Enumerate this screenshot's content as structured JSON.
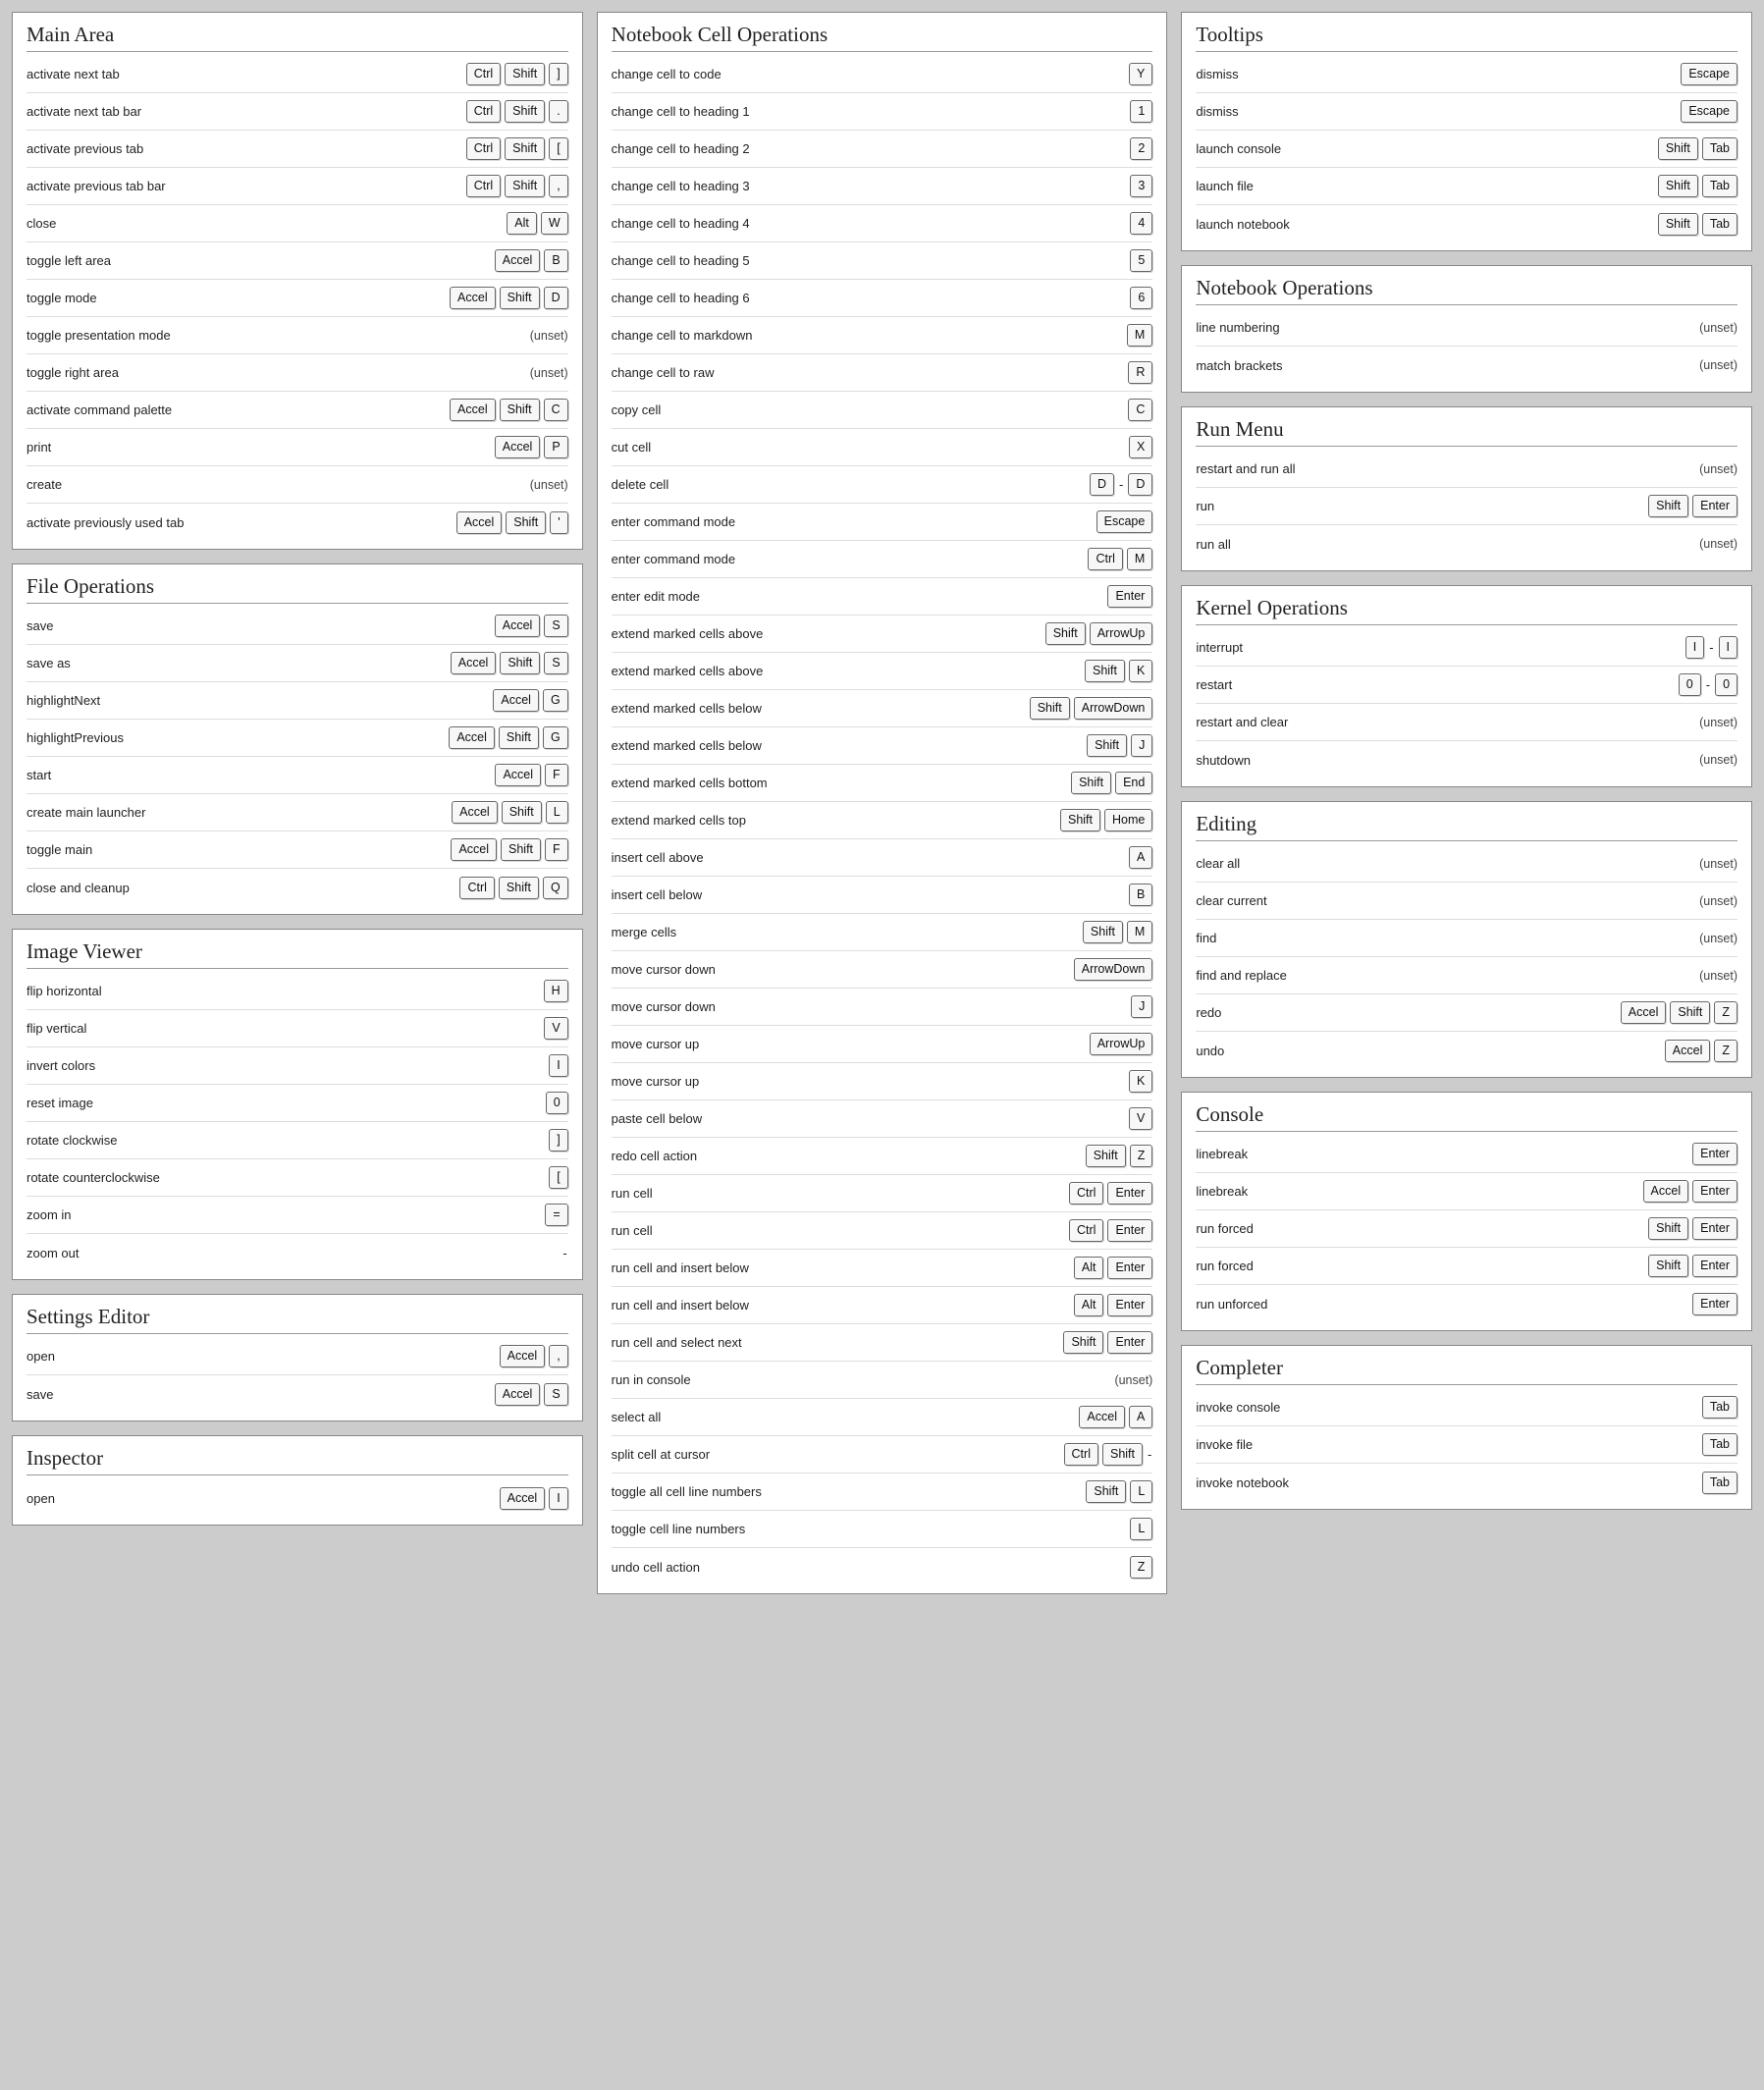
{
  "columns": [
    {
      "panels": [
        {
          "title": "Main Area",
          "rows": [
            {
              "label": "activate next tab",
              "keys": [
                "Ctrl",
                "Shift",
                "]"
              ]
            },
            {
              "label": "activate next tab bar",
              "keys": [
                "Ctrl",
                "Shift",
                "."
              ]
            },
            {
              "label": "activate previous tab",
              "keys": [
                "Ctrl",
                "Shift",
                "["
              ]
            },
            {
              "label": "activate previous tab bar",
              "keys": [
                "Ctrl",
                "Shift",
                ","
              ]
            },
            {
              "label": "close",
              "keys": [
                "Alt",
                "W"
              ]
            },
            {
              "label": "toggle left area",
              "keys": [
                "Accel",
                "B"
              ]
            },
            {
              "label": "toggle mode",
              "keys": [
                "Accel",
                "Shift",
                "D"
              ]
            },
            {
              "label": "toggle presentation mode",
              "unset": true
            },
            {
              "label": "toggle right area",
              "unset": true
            },
            {
              "label": "activate command palette",
              "keys": [
                "Accel",
                "Shift",
                "C"
              ]
            },
            {
              "label": "print",
              "keys": [
                "Accel",
                "P"
              ]
            },
            {
              "label": "create",
              "unset": true
            },
            {
              "label": "activate previously used tab",
              "keys": [
                "Accel",
                "Shift",
                "'"
              ]
            }
          ]
        },
        {
          "title": "File Operations",
          "rows": [
            {
              "label": "save",
              "keys": [
                "Accel",
                "S"
              ]
            },
            {
              "label": "save as",
              "keys": [
                "Accel",
                "Shift",
                "S"
              ]
            },
            {
              "label": "highlightNext",
              "keys": [
                "Accel",
                "G"
              ]
            },
            {
              "label": "highlightPrevious",
              "keys": [
                "Accel",
                "Shift",
                "G"
              ]
            },
            {
              "label": "start",
              "keys": [
                "Accel",
                "F"
              ]
            },
            {
              "label": "create main launcher",
              "keys": [
                "Accel",
                "Shift",
                "L"
              ]
            },
            {
              "label": "toggle main",
              "keys": [
                "Accel",
                "Shift",
                "F"
              ]
            },
            {
              "label": "close and cleanup",
              "keys": [
                "Ctrl",
                "Shift",
                "Q"
              ]
            }
          ]
        },
        {
          "title": "Image Viewer",
          "rows": [
            {
              "label": "flip horizontal",
              "keys": [
                "H"
              ]
            },
            {
              "label": "flip vertical",
              "keys": [
                "V"
              ]
            },
            {
              "label": "invert colors",
              "keys": [
                "I"
              ]
            },
            {
              "label": "reset image",
              "keys": [
                "0"
              ]
            },
            {
              "label": "rotate clockwise",
              "keys": [
                "]"
              ]
            },
            {
              "label": "rotate counterclockwise",
              "keys": [
                "["
              ]
            },
            {
              "label": "zoom in",
              "keys": [
                "="
              ]
            },
            {
              "label": "zoom out",
              "keys": [
                "-"
              ]
            }
          ]
        },
        {
          "title": "Settings Editor",
          "rows": [
            {
              "label": "open",
              "keys": [
                "Accel",
                ","
              ]
            },
            {
              "label": "save",
              "keys": [
                "Accel",
                "S"
              ]
            }
          ]
        },
        {
          "title": "Inspector",
          "rows": [
            {
              "label": "open",
              "keys": [
                "Accel",
                "I"
              ]
            }
          ]
        }
      ]
    },
    {
      "panels": [
        {
          "title": "Notebook Cell Operations",
          "rows": [
            {
              "label": "change cell to code",
              "keys": [
                "Y"
              ]
            },
            {
              "label": "change cell to heading 1",
              "keys": [
                "1"
              ]
            },
            {
              "label": "change cell to heading 2",
              "keys": [
                "2"
              ]
            },
            {
              "label": "change cell to heading 3",
              "keys": [
                "3"
              ]
            },
            {
              "label": "change cell to heading 4",
              "keys": [
                "4"
              ]
            },
            {
              "label": "change cell to heading 5",
              "keys": [
                "5"
              ]
            },
            {
              "label": "change cell to heading 6",
              "keys": [
                "6"
              ]
            },
            {
              "label": "change cell to markdown",
              "keys": [
                "M"
              ]
            },
            {
              "label": "change cell to raw",
              "keys": [
                "R"
              ]
            },
            {
              "label": "copy cell",
              "keys": [
                "C"
              ]
            },
            {
              "label": "cut cell",
              "keys": [
                "X"
              ]
            },
            {
              "label": "delete cell",
              "keys": [
                "D",
                "-",
                "D"
              ]
            },
            {
              "label": "enter command mode",
              "keys": [
                "Escape"
              ]
            },
            {
              "label": "enter command mode",
              "keys": [
                "Ctrl",
                "M"
              ]
            },
            {
              "label": "enter edit mode",
              "keys": [
                "Enter"
              ]
            },
            {
              "label": "extend marked cells above",
              "keys": [
                "Shift",
                "ArrowUp"
              ]
            },
            {
              "label": "extend marked cells above",
              "keys": [
                "Shift",
                "K"
              ]
            },
            {
              "label": "extend marked cells below",
              "keys": [
                "Shift",
                "ArrowDown"
              ]
            },
            {
              "label": "extend marked cells below",
              "keys": [
                "Shift",
                "J"
              ]
            },
            {
              "label": "extend marked cells bottom",
              "keys": [
                "Shift",
                "End"
              ]
            },
            {
              "label": "extend marked cells top",
              "keys": [
                "Shift",
                "Home"
              ]
            },
            {
              "label": "insert cell above",
              "keys": [
                "A"
              ]
            },
            {
              "label": "insert cell below",
              "keys": [
                "B"
              ]
            },
            {
              "label": "merge cells",
              "keys": [
                "Shift",
                "M"
              ]
            },
            {
              "label": "move cursor down",
              "keys": [
                "ArrowDown"
              ]
            },
            {
              "label": "move cursor down",
              "keys": [
                "J"
              ]
            },
            {
              "label": "move cursor up",
              "keys": [
                "ArrowUp"
              ]
            },
            {
              "label": "move cursor up",
              "keys": [
                "K"
              ]
            },
            {
              "label": "paste cell below",
              "keys": [
                "V"
              ]
            },
            {
              "label": "redo cell action",
              "keys": [
                "Shift",
                "Z"
              ]
            },
            {
              "label": "run cell",
              "keys": [
                "Ctrl",
                "Enter"
              ]
            },
            {
              "label": "run cell",
              "keys": [
                "Ctrl",
                "Enter"
              ]
            },
            {
              "label": "run cell and insert below",
              "keys": [
                "Alt",
                "Enter"
              ]
            },
            {
              "label": "run cell and insert below",
              "keys": [
                "Alt",
                "Enter"
              ]
            },
            {
              "label": "run cell and select next",
              "keys": [
                "Shift",
                "Enter"
              ]
            },
            {
              "label": "run in console",
              "unset": true
            },
            {
              "label": "select all",
              "keys": [
                "Accel",
                "A"
              ]
            },
            {
              "label": "split cell at cursor",
              "keys": [
                "Ctrl",
                "Shift",
                "-"
              ]
            },
            {
              "label": "toggle all cell line numbers",
              "keys": [
                "Shift",
                "L"
              ]
            },
            {
              "label": "toggle cell line numbers",
              "keys": [
                "L"
              ]
            },
            {
              "label": "undo cell action",
              "keys": [
                "Z"
              ]
            }
          ]
        }
      ]
    },
    {
      "panels": [
        {
          "title": "Tooltips",
          "rows": [
            {
              "label": "dismiss",
              "keys": [
                "Escape"
              ]
            },
            {
              "label": "dismiss",
              "keys": [
                "Escape"
              ]
            },
            {
              "label": "launch console",
              "keys": [
                "Shift",
                "Tab"
              ]
            },
            {
              "label": "launch file",
              "keys": [
                "Shift",
                "Tab"
              ]
            },
            {
              "label": "launch notebook",
              "keys": [
                "Shift",
                "Tab"
              ]
            }
          ]
        },
        {
          "title": "Notebook Operations",
          "rows": [
            {
              "label": "line numbering",
              "unset": true
            },
            {
              "label": "match brackets",
              "unset": true
            }
          ]
        },
        {
          "title": "Run Menu",
          "rows": [
            {
              "label": "restart and run all",
              "unset": true
            },
            {
              "label": "run",
              "keys": [
                "Shift",
                "Enter"
              ]
            },
            {
              "label": "run all",
              "unset": true
            }
          ]
        },
        {
          "title": "Kernel Operations",
          "rows": [
            {
              "label": "interrupt",
              "keys": [
                "I",
                "-",
                "I"
              ]
            },
            {
              "label": "restart",
              "keys": [
                "0",
                "-",
                "0"
              ]
            },
            {
              "label": "restart and clear",
              "unset": true
            },
            {
              "label": "shutdown",
              "unset": true
            }
          ]
        },
        {
          "title": "Editing",
          "rows": [
            {
              "label": "clear all",
              "unset": true
            },
            {
              "label": "clear current",
              "unset": true
            },
            {
              "label": "find",
              "unset": true
            },
            {
              "label": "find and replace",
              "unset": true
            },
            {
              "label": "redo",
              "keys": [
                "Accel",
                "Shift",
                "Z"
              ]
            },
            {
              "label": "undo",
              "keys": [
                "Accel",
                "Z"
              ]
            }
          ]
        },
        {
          "title": "Console",
          "rows": [
            {
              "label": "linebreak",
              "keys": [
                "Enter"
              ]
            },
            {
              "label": "linebreak",
              "keys": [
                "Accel",
                "Enter"
              ]
            },
            {
              "label": "run forced",
              "keys": [
                "Shift",
                "Enter"
              ]
            },
            {
              "label": "run forced",
              "keys": [
                "Shift",
                "Enter"
              ]
            },
            {
              "label": "run unforced",
              "keys": [
                "Enter"
              ]
            }
          ]
        },
        {
          "title": "Completer",
          "rows": [
            {
              "label": "invoke console",
              "keys": [
                "Tab"
              ]
            },
            {
              "label": "invoke file",
              "keys": [
                "Tab"
              ]
            },
            {
              "label": "invoke notebook",
              "keys": [
                "Tab"
              ]
            }
          ]
        }
      ]
    }
  ],
  "unset_text": "(unset)"
}
